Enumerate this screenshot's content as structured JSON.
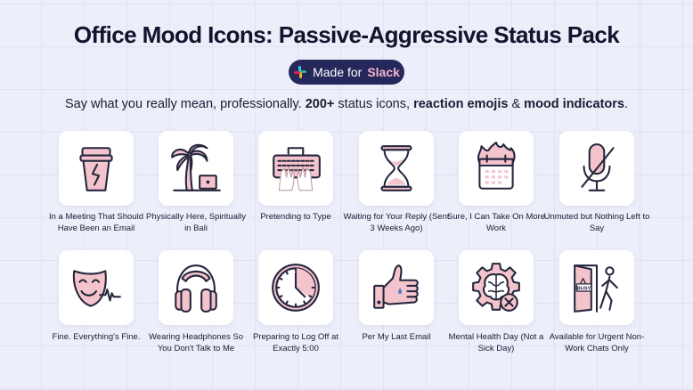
{
  "header": {
    "title": "Office Mood Icons: Passive-Aggressive Status Pack",
    "badge": {
      "prefix": "Made for",
      "brand": "Slack",
      "icon": "slack-logo-icon"
    },
    "subtitle": {
      "part1": "Say what you really mean, professionally. ",
      "bold1": "200+",
      "part2": " status icons, ",
      "bold2": "reaction emojis",
      "part3": " & ",
      "bold3": "mood indicators",
      "part4": "."
    }
  },
  "colors": {
    "background": "#eceefa",
    "accent_pink": "#f4c4cc",
    "ink": "#25253d",
    "badge": "#25285a"
  },
  "icons": [
    {
      "label": "In a Meeting That Should Have Been an Email",
      "icon": "cracked-coffee-cup-icon"
    },
    {
      "label": "Physically Here, Spiritually in Bali",
      "icon": "palm-tree-laptop-icon"
    },
    {
      "label": "Pretending to Type",
      "icon": "keyboard-hands-icon"
    },
    {
      "label": "Waiting for Your Reply (Sent 3 Weeks Ago)",
      "icon": "hourglass-icon"
    },
    {
      "label": "Sure, I Can Take On More Work",
      "icon": "burning-calendar-icon"
    },
    {
      "label": "Unmuted but Nothing Left to Say",
      "icon": "muted-microphone-icon"
    },
    {
      "label": "Fine. Everything's Fine.",
      "icon": "smiling-mask-icon"
    },
    {
      "label": "Wearing Headphones So You Don't Talk to Me",
      "icon": "headphones-icon"
    },
    {
      "label": "Preparing to Log Off at Exactly 5:00",
      "icon": "clock-icon"
    },
    {
      "label": "Per My Last Email",
      "icon": "thumbs-up-sweat-icon"
    },
    {
      "label": "Mental Health Day (Not a Sick Day)",
      "icon": "brain-gear-icon"
    },
    {
      "label": "Available for Urgent Non-Work Chats Only",
      "icon": "busy-door-walking-icon",
      "sign": "BUSY"
    }
  ]
}
